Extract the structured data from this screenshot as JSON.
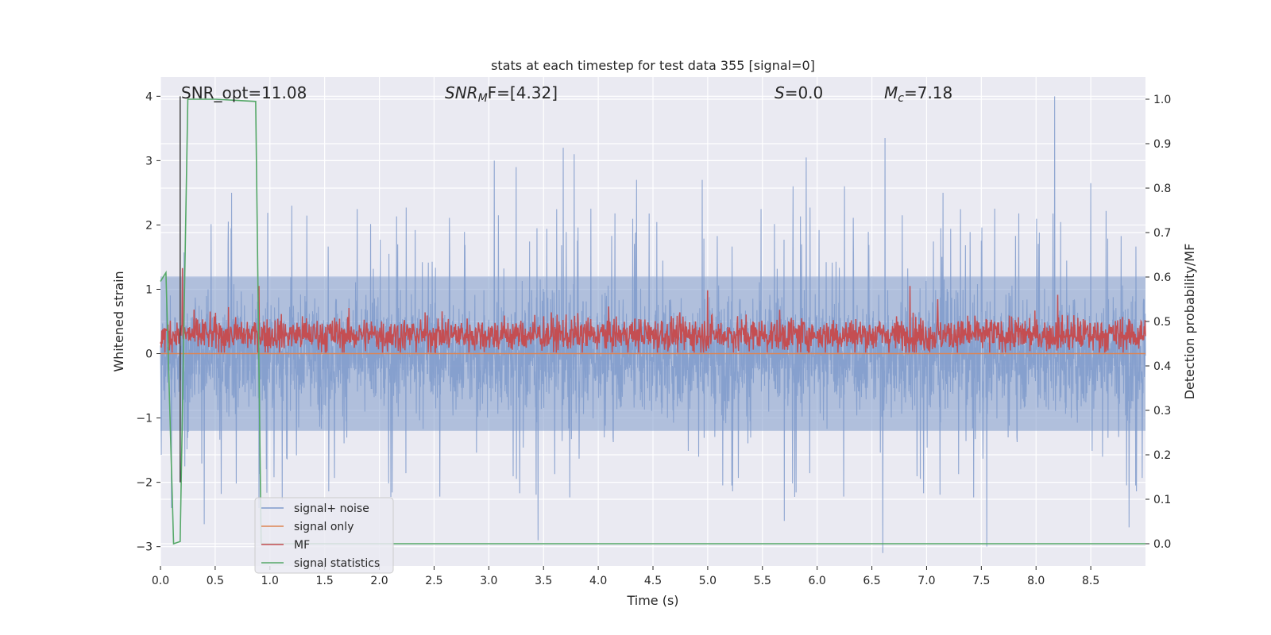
{
  "chart_data": {
    "type": "line",
    "title": "stats at each timestep for test data 355 [signal=0]",
    "xlabel": "Time (s)",
    "ylabel_left": "Whitened strain",
    "ylabel_right": "Detection probability/MF",
    "xlim": [
      0.0,
      9.0
    ],
    "ylim_left": [
      -3.3,
      4.3
    ],
    "ylim_right": [
      -0.05,
      1.05
    ],
    "x_ticks": [
      0.0,
      0.5,
      1.0,
      1.5,
      2.0,
      2.5,
      3.0,
      3.5,
      4.0,
      4.5,
      5.0,
      5.5,
      6.0,
      6.5,
      7.0,
      7.5,
      8.0,
      8.5
    ],
    "x_tick_labels": [
      "0.0",
      "0.5",
      "1.0",
      "1.5",
      "2.0",
      "2.5",
      "3.0",
      "3.5",
      "4.0",
      "4.5",
      "5.0",
      "5.5",
      "6.0",
      "6.5",
      "7.0",
      "7.5",
      "8.0",
      "8.5"
    ],
    "y_left_ticks": [
      -3,
      -2,
      -1,
      0,
      1,
      2,
      3,
      4
    ],
    "y_left_tick_labels": [
      "−3",
      "−2",
      "−1",
      "0",
      "1",
      "2",
      "3",
      "4"
    ],
    "y_right_ticks": [
      0.0,
      0.1,
      0.2,
      0.3,
      0.4,
      0.5,
      0.6,
      0.7,
      0.8,
      0.9,
      1.0
    ],
    "y_right_tick_labels": [
      "0.0",
      "0.1",
      "0.2",
      "0.3",
      "0.4",
      "0.5",
      "0.6",
      "0.7",
      "0.8",
      "0.9",
      "1.0"
    ],
    "grid": true,
    "legend_placement": "lower-left",
    "annotations": {
      "snr_opt": "SNR_opt=11.08",
      "snr_mf_main": "SNR",
      "snr_mf_sub": "M",
      "snr_mf_rest": "F=[4.32]",
      "s_main": "S",
      "s_rest": "=0.0",
      "mc_main": "M",
      "mc_sub": "c",
      "mc_rest": "=7.18"
    },
    "series": [
      {
        "name": "signal+ noise",
        "color": "#7f9acb",
        "axis": "left",
        "noise_envelope": {
          "typical_min": -1.6,
          "typical_max": 1.6,
          "peak_max": 4.0,
          "peak_min": -3.0
        },
        "notable_peaks": [
          [
            0.65,
            2.5
          ],
          [
            1.2,
            2.3
          ],
          [
            3.05,
            3.0
          ],
          [
            3.25,
            2.9
          ],
          [
            3.68,
            3.2
          ],
          [
            3.78,
            3.1
          ],
          [
            4.35,
            2.7
          ],
          [
            4.95,
            2.7
          ],
          [
            5.78,
            2.6
          ],
          [
            5.9,
            3.05
          ],
          [
            6.25,
            2.6
          ],
          [
            6.62,
            3.35
          ],
          [
            7.15,
            2.5
          ],
          [
            8.17,
            4.0
          ],
          [
            8.5,
            2.65
          ]
        ],
        "notable_troughs": [
          [
            0.1,
            -2.4
          ],
          [
            0.4,
            -2.65
          ],
          [
            0.9,
            -2.4
          ],
          [
            3.45,
            -2.9
          ],
          [
            5.7,
            -2.6
          ],
          [
            6.6,
            -3.1
          ],
          [
            7.55,
            -3.0
          ],
          [
            8.85,
            -2.7
          ]
        ]
      },
      {
        "name": "signal only",
        "color": "#dd8452",
        "axis": "left",
        "x": [
          0.0,
          9.0
        ],
        "y": [
          0.0,
          0.0
        ]
      },
      {
        "name": "MF",
        "color": "#c44e52",
        "axis": "right",
        "band": {
          "center": 0.47,
          "min": 0.43,
          "max": 0.58
        },
        "notable_peaks": [
          [
            0.2,
            0.62
          ],
          [
            0.9,
            0.58
          ],
          [
            5.0,
            0.57
          ],
          [
            6.85,
            0.58
          ],
          [
            7.1,
            0.55
          ],
          [
            8.2,
            0.56
          ]
        ]
      },
      {
        "name": "signal statistics",
        "color": "#55a868",
        "axis": "right",
        "x": [
          0.0,
          0.05,
          0.12,
          0.18,
          0.25,
          0.5,
          0.87,
          0.92,
          0.95,
          9.0
        ],
        "y": [
          0.59,
          0.61,
          0.0,
          0.005,
          1.0,
          1.0,
          0.995,
          0.0,
          0.0,
          0.0
        ]
      }
    ]
  }
}
